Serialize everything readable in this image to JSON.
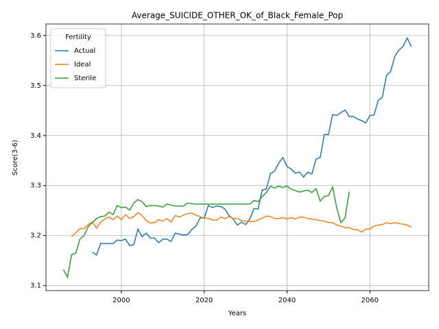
{
  "chart_data": {
    "type": "line",
    "title": "Average_SUICIDE_OTHER_OK_of_Black_Female_Pop",
    "xlabel": "Years",
    "ylabel": "Score(3-6)",
    "legend_title": "Fertility",
    "legend": "upper left",
    "grid": true,
    "xlim": [
      1981.8,
      2074.2
    ],
    "ylim": [
      3.09,
      3.623
    ],
    "xticks": [
      2000,
      2020,
      2040,
      2060
    ],
    "yticks": [
      3.1,
      3.2,
      3.3,
      3.4,
      3.5,
      3.6
    ],
    "x": [
      1986,
      1987,
      1988,
      1989,
      1990,
      1991,
      1992,
      1993,
      1994,
      1995,
      1996,
      1997,
      1998,
      1999,
      2000,
      2001,
      2002,
      2003,
      2004,
      2005,
      2006,
      2007,
      2008,
      2009,
      2010,
      2011,
      2012,
      2013,
      2014,
      2015,
      2016,
      2017,
      2018,
      2019,
      2020,
      2021,
      2022,
      2023,
      2024,
      2025,
      2026,
      2027,
      2028,
      2029,
      2030,
      2031,
      2032,
      2033,
      2034,
      2035,
      2036,
      2037,
      2038,
      2039,
      2040,
      2041,
      2042,
      2043,
      2044,
      2045,
      2046,
      2047,
      2048,
      2049,
      2050,
      2051,
      2052,
      2053,
      2054,
      2055,
      2056,
      2057,
      2058,
      2059,
      2060,
      2061,
      2062,
      2063,
      2064,
      2065,
      2066,
      2067,
      2068,
      2069,
      2070
    ],
    "series": [
      {
        "name": "Actual",
        "color": "#1f77b4",
        "values": [
          null,
          null,
          null,
          null,
          null,
          null,
          null,
          3.167,
          3.161,
          3.184,
          3.184,
          3.184,
          3.184,
          3.191,
          3.19,
          3.193,
          3.18,
          3.182,
          3.213,
          3.198,
          3.205,
          3.195,
          3.195,
          3.186,
          3.193,
          3.193,
          3.188,
          3.205,
          3.203,
          3.201,
          3.202,
          3.212,
          3.219,
          3.235,
          3.235,
          3.26,
          3.256,
          3.259,
          3.258,
          3.253,
          3.24,
          3.233,
          3.221,
          3.227,
          3.222,
          3.233,
          3.254,
          3.253,
          3.291,
          3.293,
          3.324,
          3.329,
          3.345,
          3.356,
          3.338,
          3.333,
          3.325,
          3.327,
          3.317,
          3.327,
          3.323,
          3.353,
          3.356,
          3.402,
          3.402,
          3.442,
          3.44,
          3.446,
          3.451,
          3.438,
          3.438,
          3.433,
          3.43,
          3.425,
          3.44,
          3.441,
          3.47,
          3.477,
          3.52,
          3.528,
          3.558,
          3.571,
          3.578,
          3.595,
          3.578
        ]
      },
      {
        "name": "Ideal",
        "color": "#ff7f0e",
        "values": [
          null,
          null,
          3.198,
          3.206,
          3.214,
          3.214,
          3.222,
          3.227,
          3.215,
          3.227,
          3.233,
          3.237,
          3.232,
          3.239,
          3.232,
          3.242,
          3.234,
          3.238,
          3.246,
          3.24,
          3.23,
          3.225,
          3.226,
          3.232,
          3.229,
          3.234,
          3.227,
          3.24,
          3.237,
          3.241,
          3.244,
          3.245,
          3.241,
          3.238,
          3.234,
          3.235,
          3.231,
          3.231,
          3.237,
          3.234,
          3.238,
          3.234,
          3.234,
          3.23,
          3.229,
          3.228,
          3.228,
          3.231,
          3.235,
          3.239,
          3.238,
          3.234,
          3.234,
          3.236,
          3.233,
          3.236,
          3.233,
          3.237,
          3.237,
          3.234,
          3.233,
          3.232,
          3.23,
          3.229,
          3.226,
          3.226,
          3.221,
          3.219,
          3.216,
          3.216,
          3.212,
          3.212,
          3.207,
          3.213,
          3.213,
          3.219,
          3.221,
          3.222,
          3.226,
          3.224,
          3.226,
          3.224,
          3.223,
          3.221,
          3.217
        ]
      },
      {
        "name": "Sterile",
        "color": "#2ca02c",
        "values": [
          3.132,
          3.117,
          3.162,
          3.165,
          3.193,
          3.2,
          3.218,
          3.226,
          3.234,
          3.238,
          3.239,
          3.247,
          3.242,
          3.26,
          3.256,
          3.257,
          3.251,
          3.265,
          3.272,
          3.268,
          3.258,
          3.26,
          3.26,
          3.259,
          3.257,
          3.263,
          3.261,
          3.259,
          3.259,
          3.259,
          3.265,
          3.264,
          3.263,
          3.263,
          3.263,
          3.263,
          3.263,
          3.263,
          3.263,
          3.263,
          3.263,
          3.263,
          3.263,
          3.263,
          3.263,
          3.263,
          3.27,
          3.268,
          3.278,
          3.286,
          3.299,
          3.295,
          3.299,
          3.296,
          3.299,
          3.293,
          3.29,
          3.287,
          3.289,
          3.291,
          3.286,
          3.294,
          3.269,
          3.278,
          3.28,
          3.297,
          3.255,
          3.226,
          3.235,
          3.288,
          null,
          null,
          null,
          null,
          null,
          null,
          null,
          null,
          null,
          null,
          null,
          null,
          null,
          null,
          null
        ]
      }
    ]
  }
}
